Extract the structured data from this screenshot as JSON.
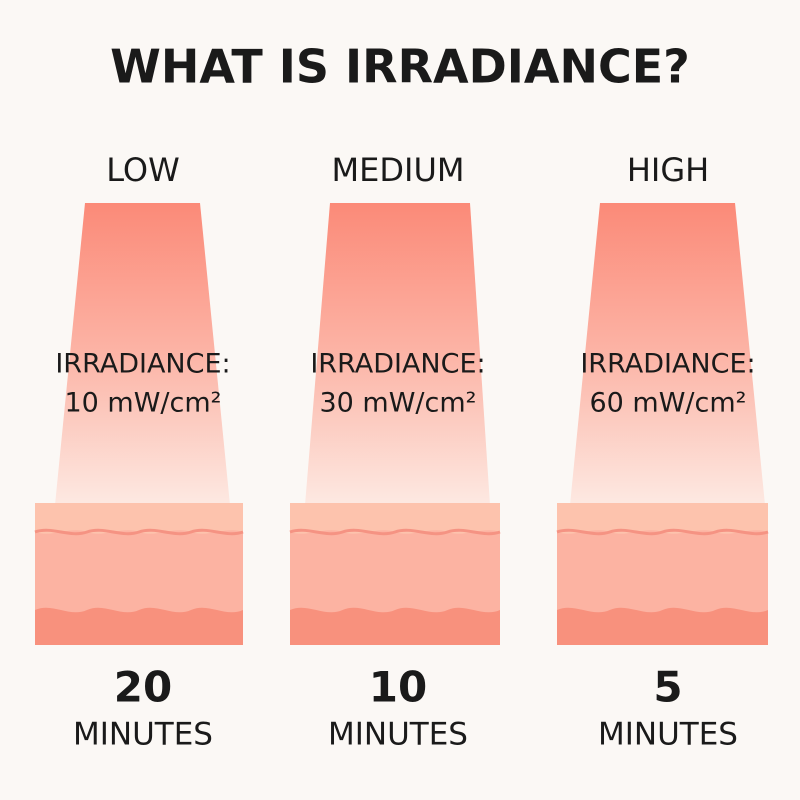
{
  "header": {
    "title": "WHAT IS IRRADIANCE?"
  },
  "panels": [
    {
      "level": "LOW",
      "irradiance_label": "IRRADIANCE:",
      "irradiance_value": "10 mW/cm²",
      "time_value": "20",
      "time_unit": "MINUTES"
    },
    {
      "level": "MEDIUM",
      "irradiance_label": "IRRADIANCE:",
      "irradiance_value": "30 mW/cm²",
      "time_value": "10",
      "time_unit": "MINUTES"
    },
    {
      "level": "HIGH",
      "irradiance_label": "IRRADIANCE:",
      "irradiance_value": "60 mW/cm²",
      "time_value": "5",
      "time_unit": "MINUTES"
    }
  ]
}
